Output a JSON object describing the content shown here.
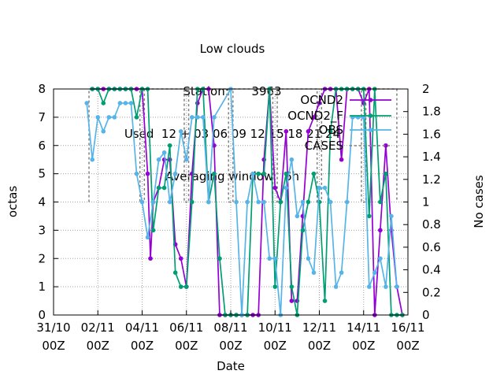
{
  "title": {
    "line1": "Low clouds",
    "line2": "Station:      3963",
    "line3": "Used  12 + 03 06 09 12 15 18 21 24",
    "line4": "Averaging window:  6h"
  },
  "chart_data": {
    "type": "line",
    "xlabel": "Date",
    "ylabel": "octas",
    "y2label": "No cases",
    "xlim": [
      0,
      16
    ],
    "ylim": [
      0,
      8
    ],
    "y2lim": [
      0,
      2
    ],
    "x_unit": "days after 31/10 00Z",
    "x_ticks": [
      {
        "value": 0,
        "line1": "31/10",
        "line2": "00Z"
      },
      {
        "value": 2,
        "line1": "02/11",
        "line2": "00Z"
      },
      {
        "value": 4,
        "line1": "04/11",
        "line2": "00Z"
      },
      {
        "value": 6,
        "line1": "06/11",
        "line2": "00Z"
      },
      {
        "value": 8,
        "line1": "08/11",
        "line2": "00Z"
      },
      {
        "value": 10,
        "line1": "10/11",
        "line2": "00Z"
      },
      {
        "value": 12,
        "line1": "12/11",
        "line2": "00Z"
      },
      {
        "value": 14,
        "line1": "14/11",
        "line2": "00Z"
      },
      {
        "value": 16,
        "line1": "16/11",
        "line2": "00Z"
      }
    ],
    "y_ticks": [
      "0",
      "1",
      "2",
      "3",
      "4",
      "5",
      "6",
      "7",
      "8"
    ],
    "y2_ticks": [
      "0",
      "0.2",
      "0.4",
      "0.6",
      "0.8",
      "1",
      "1.2",
      "1.4",
      "1.6",
      "1.8",
      "2"
    ],
    "legend_position": "top-right",
    "grid": true,
    "series": [
      {
        "name": "OCND2",
        "color": "#9400d3",
        "marker": "circle",
        "points": [
          [
            1.75,
            8
          ],
          [
            2.0,
            8
          ],
          [
            2.25,
            8
          ],
          [
            2.5,
            8
          ],
          [
            2.75,
            8
          ],
          [
            3.0,
            8
          ],
          [
            3.25,
            8
          ],
          [
            3.5,
            8
          ],
          [
            3.75,
            8
          ],
          [
            4.0,
            8
          ],
          [
            4.25,
            5
          ],
          [
            4.375,
            2
          ],
          [
            4.5,
            4
          ],
          [
            4.75,
            4.5
          ],
          [
            5.0,
            5.5
          ],
          [
            5.25,
            5.5
          ],
          [
            5.5,
            2.5
          ],
          [
            5.75,
            2
          ],
          [
            6.0,
            1
          ],
          [
            6.25,
            5
          ],
          [
            6.5,
            7.5
          ],
          [
            6.75,
            8
          ],
          [
            7.0,
            8
          ],
          [
            7.25,
            6
          ],
          [
            7.5,
            0
          ],
          [
            7.75,
            0
          ],
          [
            8.0,
            0
          ],
          [
            8.25,
            0
          ],
          [
            8.5,
            0
          ],
          [
            8.75,
            0
          ],
          [
            9.0,
            0
          ],
          [
            9.25,
            0
          ],
          [
            9.5,
            5.5
          ],
          [
            9.75,
            8
          ],
          [
            10.0,
            4.5
          ],
          [
            10.25,
            4
          ],
          [
            10.5,
            6.5
          ],
          [
            10.75,
            0.5
          ],
          [
            11.0,
            0.5
          ],
          [
            11.25,
            3.5
          ],
          [
            11.5,
            6.5
          ],
          [
            11.75,
            7
          ],
          [
            12.0,
            7.5
          ],
          [
            12.25,
            8
          ],
          [
            12.5,
            8
          ],
          [
            12.75,
            8
          ],
          [
            13.0,
            5.5
          ],
          [
            13.25,
            8
          ],
          [
            13.5,
            8
          ],
          [
            13.75,
            8
          ],
          [
            14.0,
            7.5
          ],
          [
            14.25,
            8
          ],
          [
            14.5,
            0
          ],
          [
            14.75,
            3
          ],
          [
            15.0,
            6
          ],
          [
            15.25,
            3
          ],
          [
            15.5,
            1
          ],
          [
            15.75,
            0
          ]
        ]
      },
      {
        "name": "OCND2_F",
        "color": "#009e73",
        "marker": "circle",
        "points": [
          [
            1.75,
            8
          ],
          [
            2.0,
            8
          ],
          [
            2.25,
            7.5
          ],
          [
            2.5,
            8
          ],
          [
            2.75,
            8
          ],
          [
            3.0,
            8
          ],
          [
            3.25,
            8
          ],
          [
            3.5,
            8
          ],
          [
            3.75,
            7
          ],
          [
            4.0,
            8
          ],
          [
            4.25,
            8
          ],
          [
            4.5,
            3
          ],
          [
            4.75,
            4.5
          ],
          [
            5.0,
            4.5
          ],
          [
            5.25,
            6
          ],
          [
            5.5,
            1.5
          ],
          [
            5.75,
            1
          ],
          [
            6.0,
            1
          ],
          [
            6.25,
            4
          ],
          [
            6.5,
            8
          ],
          [
            6.75,
            8
          ],
          [
            7.0,
            4
          ],
          [
            7.25,
            5
          ],
          [
            7.5,
            2
          ],
          [
            7.75,
            0
          ],
          [
            8.0,
            0
          ],
          [
            8.25,
            0
          ],
          [
            8.5,
            0
          ],
          [
            8.75,
            0
          ],
          [
            9.0,
            5
          ],
          [
            9.25,
            5
          ],
          [
            9.5,
            5
          ],
          [
            9.75,
            8
          ],
          [
            10.0,
            1
          ],
          [
            10.25,
            4
          ],
          [
            10.5,
            5
          ],
          [
            10.75,
            1
          ],
          [
            11.0,
            0
          ],
          [
            11.25,
            3
          ],
          [
            11.5,
            4
          ],
          [
            11.75,
            5
          ],
          [
            12.0,
            4
          ],
          [
            12.25,
            0.5
          ],
          [
            12.5,
            6.5
          ],
          [
            12.75,
            8
          ],
          [
            13.0,
            8
          ],
          [
            13.25,
            8
          ],
          [
            13.5,
            8
          ],
          [
            13.75,
            8
          ],
          [
            14.0,
            8
          ],
          [
            14.25,
            3.5
          ],
          [
            14.5,
            8
          ],
          [
            14.75,
            4
          ],
          [
            15.0,
            5
          ],
          [
            15.25,
            0
          ],
          [
            15.5,
            0
          ],
          [
            15.75,
            0
          ]
        ]
      },
      {
        "name": "OBS",
        "color": "#56b4e9",
        "marker": "circle",
        "points": [
          [
            1.5,
            7.5
          ],
          [
            1.75,
            5.5
          ],
          [
            2.0,
            7
          ],
          [
            2.25,
            6.5
          ],
          [
            2.5,
            7
          ],
          [
            2.75,
            7
          ],
          [
            3.0,
            7.5
          ],
          [
            3.25,
            7.5
          ],
          [
            3.5,
            7.5
          ],
          [
            3.75,
            5
          ],
          [
            4.0,
            4
          ],
          [
            4.25,
            2.75
          ],
          [
            4.5,
            4
          ],
          [
            4.75,
            5.5
          ],
          [
            5.0,
            5.75
          ],
          [
            5.25,
            4
          ],
          [
            5.5,
            5
          ],
          [
            5.75,
            6.5
          ],
          [
            6.0,
            5.5
          ],
          [
            6.25,
            7
          ],
          [
            6.5,
            7
          ],
          [
            6.75,
            7
          ],
          [
            7.0,
            4
          ],
          [
            7.25,
            7
          ],
          [
            8.0,
            8
          ],
          [
            8.25,
            4
          ],
          [
            8.5,
            0
          ],
          [
            8.75,
            4
          ],
          [
            9.0,
            5
          ],
          [
            9.25,
            4
          ],
          [
            9.5,
            4
          ],
          [
            9.75,
            2
          ],
          [
            10.0,
            2
          ],
          [
            10.25,
            0
          ],
          [
            10.5,
            4.5
          ],
          [
            10.75,
            5.5
          ],
          [
            11.0,
            3.5
          ],
          [
            11.25,
            4
          ],
          [
            11.5,
            2
          ],
          [
            11.75,
            1.5
          ],
          [
            12.0,
            4.5
          ],
          [
            12.25,
            4.5
          ],
          [
            12.5,
            4
          ],
          [
            12.75,
            1
          ],
          [
            13.0,
            1.5
          ],
          [
            13.25,
            4
          ],
          [
            13.5,
            7
          ],
          [
            13.75,
            7
          ],
          [
            14.0,
            7
          ],
          [
            14.25,
            1
          ],
          [
            14.5,
            1.5
          ],
          [
            14.75,
            2
          ],
          [
            15.0,
            1
          ],
          [
            15.25,
            3.5
          ],
          [
            15.5,
            1
          ]
        ]
      },
      {
        "name": "CASES",
        "color": "#808080",
        "axis": "y2",
        "step_times": [
          1.6,
          3.9,
          4.1,
          5.9,
          6.1,
          7.9,
          8.1,
          9.9,
          10.1,
          11.9,
          12.1,
          13.9,
          14.1,
          15.5
        ]
      }
    ]
  }
}
